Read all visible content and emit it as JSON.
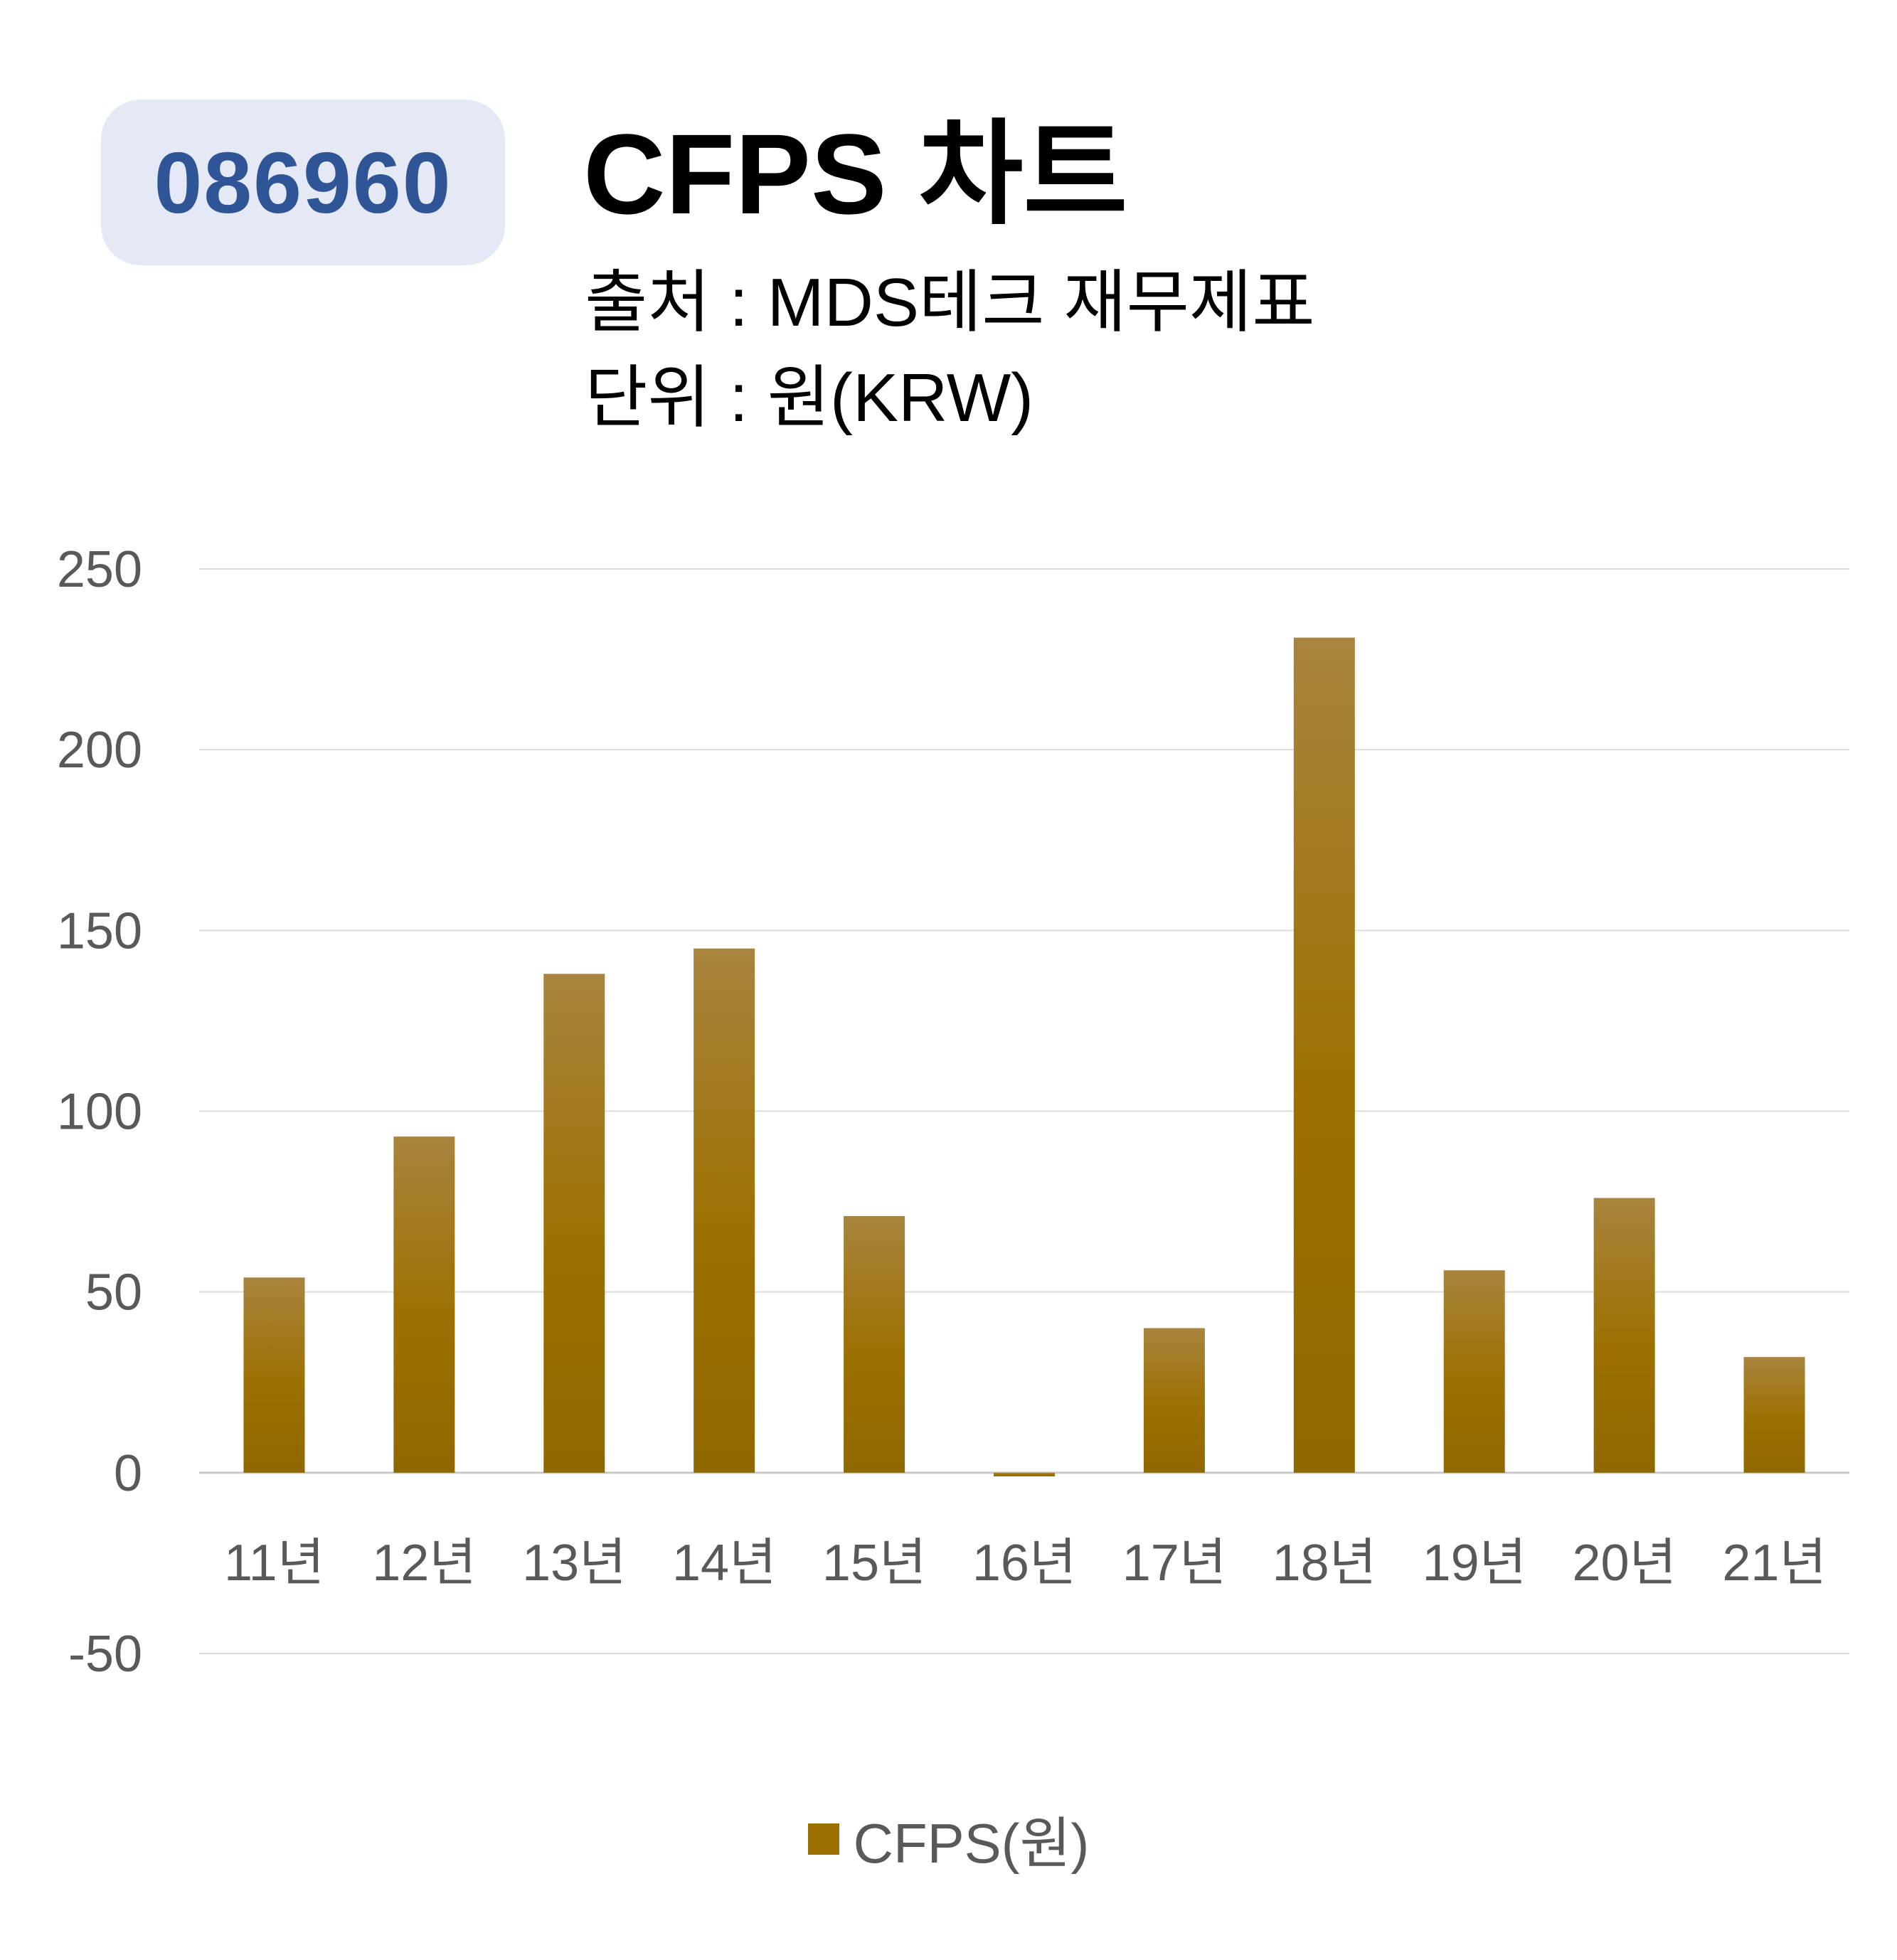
{
  "header": {
    "code": "086960",
    "title": "CFPS 차트",
    "source": "출처 : MDS테크 재무제표",
    "unit": "단위 : 원(KRW)"
  },
  "chart_data": {
    "type": "bar",
    "categories": [
      "11년",
      "12년",
      "13년",
      "14년",
      "15년",
      "16년",
      "17년",
      "18년",
      "19년",
      "20년",
      "21년"
    ],
    "series": [
      {
        "name": "CFPS(원)",
        "values": [
          54,
          93,
          138,
          145,
          71,
          -1,
          40,
          231,
          56,
          76,
          32
        ]
      }
    ],
    "title": "CFPS 차트",
    "xlabel": "",
    "ylabel": "",
    "ylim": [
      -50,
      250
    ],
    "yticks": [
      250,
      200,
      150,
      100,
      50,
      0,
      -50
    ],
    "grid": true,
    "legend_position": "bottom",
    "bar_color": "#9c7000"
  }
}
